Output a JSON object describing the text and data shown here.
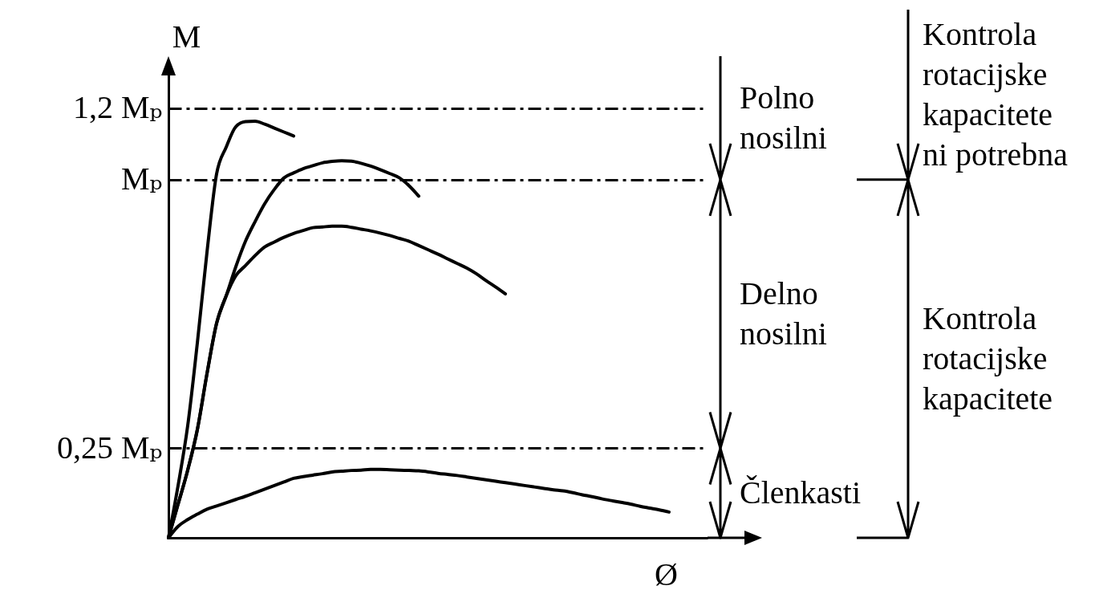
{
  "chart_data": {
    "type": "line",
    "xlabel": "Ø",
    "ylabel": "M",
    "categories": [
      null,
      null,
      null,
      null,
      null,
      null,
      null,
      null,
      null,
      null,
      null,
      null,
      null,
      null,
      null,
      null,
      null,
      null,
      null,
      null,
      null,
      null,
      null,
      null,
      null,
      null,
      null,
      null,
      null,
      null,
      null,
      null,
      null,
      null,
      null,
      null,
      null,
      null,
      null,
      null,
      null,
      null,
      null,
      null,
      null,
      null,
      null,
      null,
      null,
      null,
      null,
      null,
      null,
      null,
      null,
      null,
      null
    ],
    "series": [
      {
        "color": "#000000",
        "values": [
          0,
          0.146,
          0.313,
          0.544,
          0.797,
          1.016,
          1.091,
          1.148,
          1.162,
          1.163,
          1.155,
          1.144,
          1.133,
          1.122,
          null,
          null,
          null,
          null,
          null,
          null,
          null,
          null,
          null,
          null,
          null,
          null,
          null,
          null,
          null,
          null,
          null,
          null,
          null,
          null,
          null,
          null,
          null,
          null,
          null,
          null,
          null,
          null,
          null,
          null,
          null,
          null,
          null,
          null,
          null,
          null,
          null,
          null,
          null,
          null,
          null,
          null,
          null
        ]
      },
      {
        "color": "#000000",
        "values": [
          0,
          0.094,
          0.189,
          0.302,
          0.458,
          0.599,
          0.676,
          0.757,
          0.828,
          0.883,
          0.933,
          0.973,
          1.005,
          1.019,
          1.031,
          1.039,
          1.047,
          1.051,
          1.053,
          1.052,
          1.046,
          1.038,
          1.028,
          1.017,
          1.005,
          0.983,
          0.954,
          null,
          null,
          null,
          null,
          null,
          null,
          null,
          null,
          null,
          null,
          null,
          null,
          null,
          null,
          null,
          null,
          null,
          null,
          null,
          null,
          null,
          null,
          null,
          null,
          null,
          null,
          null,
          null,
          null,
          null
        ]
      },
      {
        "color": "#000000",
        "values": [
          0,
          0.094,
          0.189,
          0.302,
          0.458,
          0.599,
          0.676,
          0.732,
          0.76,
          0.788,
          0.812,
          0.826,
          0.839,
          0.85,
          0.858,
          0.866,
          0.868,
          0.87,
          0.87,
          0.867,
          0.862,
          0.857,
          0.851,
          0.844,
          0.836,
          0.828,
          0.816,
          0.804,
          0.792,
          0.779,
          0.766,
          0.753,
          0.737,
          0.718,
          0.7,
          0.681,
          null,
          null,
          null,
          null,
          null,
          null,
          null,
          null,
          null,
          null,
          null,
          null,
          null,
          null,
          null,
          null,
          null,
          null,
          null,
          null,
          null
        ]
      },
      {
        "color": "#000000",
        "values": [
          0,
          0.032,
          0.051,
          0.066,
          0.08,
          0.089,
          0.098,
          0.107,
          0.116,
          0.126,
          0.136,
          0.146,
          0.156,
          0.166,
          0.171,
          0.175,
          0.179,
          0.184,
          0.186,
          0.188,
          0.189,
          0.191,
          0.191,
          0.19,
          0.189,
          0.188,
          0.187,
          0.184,
          0.18,
          0.177,
          0.174,
          0.17,
          0.166,
          0.162,
          0.158,
          0.154,
          0.15,
          0.146,
          0.142,
          0.138,
          0.134,
          0.131,
          0.126,
          0.12,
          0.115,
          0.109,
          0.104,
          0.099,
          0.094,
          0.088,
          0.083,
          0.078,
          0.072,
          null,
          null,
          null,
          null
        ]
      }
    ],
    "ylim": [
      0,
      1.3
    ],
    "yticks": [
      {
        "value": 0.25,
        "label": "0,25 Mₚ"
      },
      {
        "value": 1,
        "label": "Mₚ"
      },
      {
        "value": 1.2,
        "label": "1,2 Mₚ"
      }
    ],
    "tick_labels": "y",
    "grid": "y",
    "annotations": [
      "Polno nosilni",
      "Delno nosilni",
      "Členkasti",
      "Kontrola rotacijske kapacitete ni potrebna",
      "Kontrola rotacijske kapacitete"
    ]
  }
}
